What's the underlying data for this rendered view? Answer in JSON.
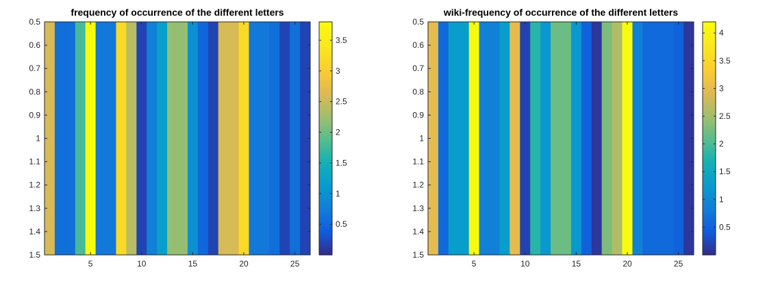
{
  "chart_data": [
    {
      "type": "heatmap",
      "title": "frequency of occurrence of the different letters",
      "xlabel": "",
      "ylabel": "",
      "x": [
        1,
        2,
        3,
        4,
        5,
        6,
        7,
        8,
        9,
        10,
        11,
        12,
        13,
        14,
        15,
        16,
        17,
        18,
        19,
        20,
        21,
        22,
        23,
        24,
        25,
        26
      ],
      "y": [
        1
      ],
      "values": [
        2.6,
        0.6,
        0.6,
        1.8,
        3.8,
        0.7,
        0.7,
        3.2,
        2.4,
        0.2,
        0.8,
        1.2,
        2.2,
        2.2,
        1.0,
        0.5,
        0.2,
        2.6,
        2.6,
        3.2,
        0.7,
        0.7,
        0.6,
        0.2,
        0.6,
        0.2
      ],
      "xticks": [
        "5",
        "10",
        "15",
        "20",
        "25"
      ],
      "xtick_values": [
        5,
        10,
        15,
        20,
        25
      ],
      "yticks": [
        "0.5",
        "0.6",
        "0.7",
        "0.8",
        "0.9",
        "1",
        "1.1",
        "1.2",
        "1.3",
        "1.4",
        "1.5"
      ],
      "ytick_values": [
        0.5,
        0.6,
        0.7,
        0.8,
        0.9,
        1.0,
        1.1,
        1.2,
        1.3,
        1.4,
        1.5
      ],
      "xlim": [
        0.5,
        26.5
      ],
      "ylim": [
        0.5,
        1.5
      ],
      "y_reversed": true,
      "colorbar": {
        "colormap": "parula",
        "clim": [
          0,
          3.8
        ],
        "ticks": [
          "0.5",
          "1",
          "1.5",
          "2",
          "2.5",
          "3",
          "3.5"
        ],
        "tick_values": [
          0.5,
          1,
          1.5,
          2,
          2.5,
          3,
          3.5
        ],
        "placement": "right"
      }
    },
    {
      "type": "heatmap",
      "title": "wiki-frequency of occurrence of the different letters",
      "xlabel": "",
      "ylabel": "",
      "x": [
        1,
        2,
        3,
        4,
        5,
        6,
        7,
        8,
        9,
        10,
        11,
        12,
        13,
        14,
        15,
        16,
        17,
        18,
        19,
        20,
        21,
        22,
        23,
        24,
        25,
        26
      ],
      "y": [
        1
      ],
      "values": [
        3.0,
        0.6,
        1.3,
        1.3,
        4.2,
        0.9,
        0.9,
        1.3,
        3.0,
        0.2,
        1.8,
        1.2,
        2.2,
        2.2,
        1.2,
        0.5,
        0.1,
        2.3,
        2.6,
        4.2,
        0.9,
        0.6,
        0.6,
        0.6,
        0.5,
        0.1
      ],
      "xticks": [
        "5",
        "10",
        "15",
        "20",
        "25"
      ],
      "xtick_values": [
        5,
        10,
        15,
        20,
        25
      ],
      "yticks": [
        "0.5",
        "0.6",
        "0.7",
        "0.8",
        "0.9",
        "1",
        "1.1",
        "1.2",
        "1.3",
        "1.4",
        "1.5"
      ],
      "ytick_values": [
        0.5,
        0.6,
        0.7,
        0.8,
        0.9,
        1.0,
        1.1,
        1.2,
        1.3,
        1.4,
        1.5
      ],
      "xlim": [
        0.5,
        26.5
      ],
      "ylim": [
        0.5,
        1.5
      ],
      "y_reversed": true,
      "colorbar": {
        "colormap": "parula",
        "clim": [
          0,
          4.2
        ],
        "ticks": [
          "0.5",
          "1",
          "1.5",
          "2",
          "2.5",
          "3",
          "3.5",
          "4"
        ],
        "tick_values": [
          0.5,
          1,
          1.5,
          2,
          2.5,
          3,
          3.5,
          4
        ],
        "placement": "right"
      }
    }
  ]
}
